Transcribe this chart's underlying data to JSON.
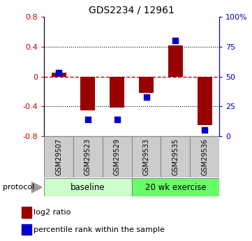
{
  "title": "GDS2234 / 12961",
  "samples": [
    "GSM29507",
    "GSM29523",
    "GSM29529",
    "GSM29533",
    "GSM29535",
    "GSM29536"
  ],
  "log2_ratios": [
    0.05,
    -0.45,
    -0.42,
    -0.22,
    0.42,
    -0.65
  ],
  "percentile_ranks": [
    53,
    14,
    14,
    33,
    80,
    5
  ],
  "ylim_left": [
    -0.8,
    0.8
  ],
  "ylim_right": [
    0,
    100
  ],
  "yticks_left": [
    -0.8,
    -0.4,
    0.0,
    0.4,
    0.8
  ],
  "yticks_right": [
    0,
    25,
    50,
    75,
    100
  ],
  "ytick_labels_right": [
    "0",
    "25",
    "50",
    "75",
    "100%"
  ],
  "bar_color": "#990000",
  "dot_color": "#0000cc",
  "dashed_color": "#cc0000",
  "n_baseline": 3,
  "n_exercise": 3,
  "baseline_label": "baseline",
  "exercise_label": "20 wk exercise",
  "protocol_label": "protocol",
  "baseline_color": "#ccffcc",
  "exercise_color": "#66ff66",
  "sample_box_color": "#cccccc",
  "legend_red_label": "log2 ratio",
  "legend_blue_label": "percentile rank within the sample",
  "bar_width": 0.5,
  "dot_size": 30,
  "fig_width": 3.61,
  "fig_height": 3.45,
  "dpi": 100
}
